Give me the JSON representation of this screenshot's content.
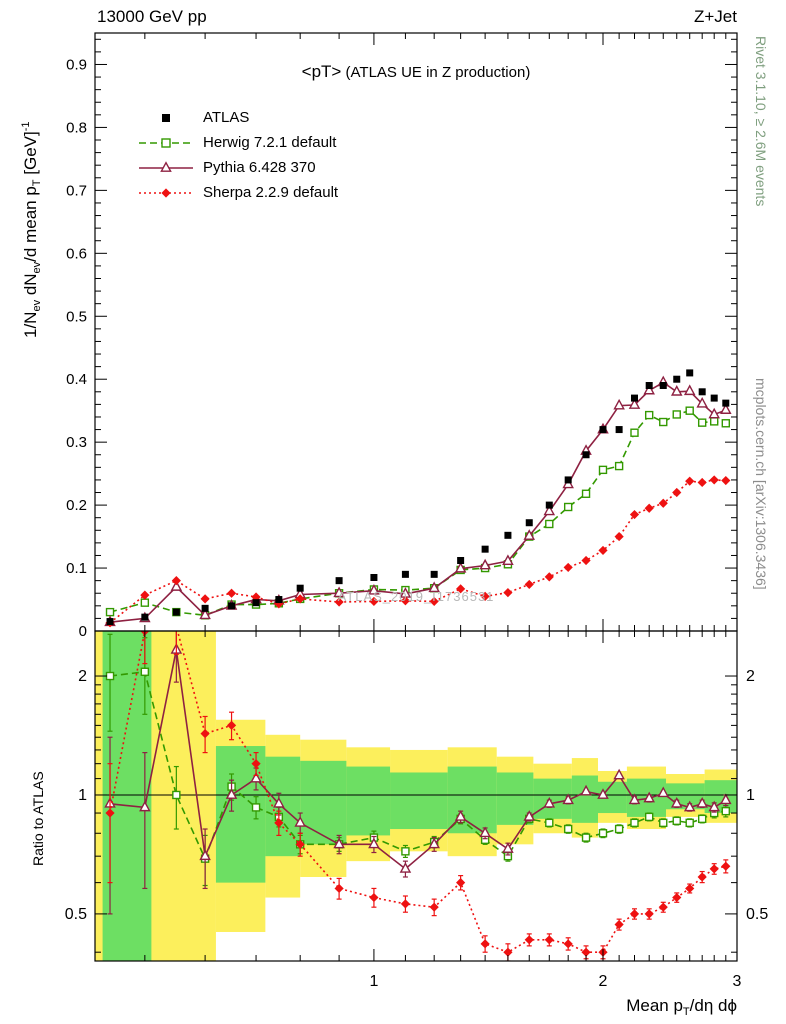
{
  "header": {
    "left": "13000 GeV pp",
    "right": "Z+Jet"
  },
  "panel_title": {
    "main": "<pT>",
    "rest": " (ATLAS UE in Z production)"
  },
  "watermark": "ATLAS_2019_I1736531",
  "side_notes": {
    "right_top": "Rivet 3.1.10, ≥ 2.6M events",
    "right_bottom": "mcplots.cern.ch [arXiv:1306.3436]"
  },
  "axes": {
    "ylabel_top_parts": [
      {
        "t": "1/N"
      },
      {
        "t": "ev",
        "s": "sub"
      },
      {
        "t": " dN"
      },
      {
        "t": "ev",
        "s": "sub"
      },
      {
        "t": "/d mean p"
      },
      {
        "t": "T",
        "s": "sub"
      },
      {
        "t": " [GeV]"
      },
      {
        "t": "-1",
        "s": "sup"
      }
    ],
    "ylabel_ratio": "Ratio to ATLAS",
    "xlabel_parts": [
      {
        "t": "Mean p"
      },
      {
        "t": "T",
        "s": "sub"
      },
      {
        "t": "/dη dϕ"
      }
    ]
  },
  "legend": {
    "items": [
      {
        "label": "ATLAS",
        "color": "#000000",
        "marker": "sq",
        "line": "none"
      },
      {
        "label": "Herwig 7.2.1 default",
        "color": "#339900",
        "marker": "sqo",
        "line": "dashed"
      },
      {
        "label": "Pythia 6.428 370",
        "color": "#8e2142",
        "marker": "tri",
        "line": "solid"
      },
      {
        "label": "Sherpa 2.2.9 default",
        "color": "#ee1111",
        "marker": "dia",
        "line": "dotted"
      }
    ]
  },
  "chart_data": {
    "type": "line",
    "xlabel": "Mean pT/deta dphi",
    "xlim": [
      0.43,
      3.0
    ],
    "xlog": true,
    "xticks": [
      {
        "v": 1,
        "label": "1"
      },
      {
        "v": 2,
        "label": "2"
      },
      {
        "v": 3,
        "label": "3"
      }
    ],
    "x": [
      0.45,
      0.5,
      0.55,
      0.6,
      0.65,
      0.7,
      0.75,
      0.8,
      0.9,
      1.0,
      1.1,
      1.2,
      1.3,
      1.4,
      1.5,
      1.6,
      1.7,
      1.8,
      1.9,
      2.0,
      2.1,
      2.2,
      2.3,
      2.4,
      2.5,
      2.6,
      2.7,
      2.8,
      2.9
    ],
    "top_panel": {
      "title": "<pT> (ATLAS UE in Z production)",
      "ylabel": "1/N_ev dN_ev/d mean p_T [GeV]^-1",
      "ylim": [
        0,
        0.95
      ],
      "yticks": [
        {
          "v": 0,
          "label": "0"
        },
        {
          "v": 0.1,
          "label": "0.1"
        },
        {
          "v": 0.2,
          "label": "0.2"
        },
        {
          "v": 0.3,
          "label": "0.3"
        },
        {
          "v": 0.4,
          "label": "0.4"
        },
        {
          "v": 0.5,
          "label": "0.5"
        },
        {
          "v": 0.6,
          "label": "0.6"
        },
        {
          "v": 0.7,
          "label": "0.7"
        },
        {
          "v": 0.8,
          "label": "0.8"
        },
        {
          "v": 0.9,
          "label": "0.9"
        }
      ],
      "series": [
        {
          "name": "ATLAS",
          "color": "#000000",
          "marker": "sq",
          "line": "none",
          "yerr_const": 0.004,
          "values": [
            0.015,
            0.022,
            0.03,
            0.036,
            0.04,
            0.045,
            0.05,
            0.068,
            0.08,
            0.085,
            0.09,
            0.09,
            0.112,
            0.13,
            0.152,
            0.172,
            0.2,
            0.24,
            0.28,
            0.32,
            0.32,
            0.37,
            0.39,
            0.39,
            0.4,
            0.41,
            0.38,
            0.37,
            0.362
          ]
        },
        {
          "name": "Herwig 7.2.1 default",
          "color": "#339900",
          "marker": "sqo",
          "line": "dashed",
          "yerr_const": 0.004,
          "values": [
            0.03,
            0.045,
            0.03,
            0.025,
            0.042,
            0.042,
            0.044,
            0.051,
            0.06,
            0.066,
            0.065,
            0.068,
            0.097,
            0.1,
            0.106,
            0.15,
            0.17,
            0.197,
            0.218,
            0.256,
            0.262,
            0.315,
            0.343,
            0.332,
            0.344,
            0.35,
            0.331,
            0.333,
            0.33
          ]
        },
        {
          "name": "Pythia 6.428 370",
          "color": "#8e2142",
          "marker": "tri",
          "line": "solid",
          "yerr_const": 0.004,
          "values": [
            0.014,
            0.02,
            0.07,
            0.025,
            0.04,
            0.05,
            0.048,
            0.058,
            0.06,
            0.064,
            0.059,
            0.068,
            0.099,
            0.104,
            0.111,
            0.151,
            0.19,
            0.233,
            0.286,
            0.32,
            0.358,
            0.359,
            0.382,
            0.395,
            0.38,
            0.381,
            0.361,
            0.344,
            0.351
          ]
        },
        {
          "name": "Sherpa 2.2.9 default",
          "color": "#ee1111",
          "marker": "dia",
          "line": "dotted",
          "yerr_const": 0.004,
          "values": [
            0.013,
            0.057,
            0.08,
            0.051,
            0.06,
            0.054,
            0.043,
            0.051,
            0.046,
            0.047,
            0.048,
            0.047,
            0.067,
            0.055,
            0.061,
            0.074,
            0.086,
            0.101,
            0.112,
            0.128,
            0.15,
            0.185,
            0.195,
            0.203,
            0.22,
            0.238,
            0.236,
            0.24,
            0.239
          ]
        }
      ]
    },
    "ratio_panel": {
      "ylabel": "Ratio to ATLAS",
      "ylim": [
        0.38,
        2.6
      ],
      "ylog": true,
      "unity_line": 1,
      "yticks": [
        {
          "v": 0.5,
          "label": "0.5"
        },
        {
          "v": 1,
          "label": "1"
        },
        {
          "v": 2,
          "label": "2"
        }
      ],
      "bands": {
        "yellow_color": "#fcef5c",
        "green_color": "#6ddf63",
        "yellow": [
          [
            0.43,
            0.62,
            0.38,
            2.6
          ],
          [
            0.62,
            0.72,
            0.45,
            1.55
          ],
          [
            0.72,
            0.8,
            0.55,
            1.42
          ],
          [
            0.8,
            0.92,
            0.62,
            1.38
          ],
          [
            0.92,
            1.05,
            0.68,
            1.32
          ],
          [
            1.05,
            1.25,
            0.72,
            1.3
          ],
          [
            1.25,
            1.45,
            0.7,
            1.32
          ],
          [
            1.45,
            1.62,
            0.75,
            1.25
          ],
          [
            1.62,
            1.82,
            0.8,
            1.2
          ],
          [
            1.82,
            1.97,
            0.78,
            1.24
          ],
          [
            1.97,
            2.15,
            0.85,
            1.15
          ],
          [
            2.15,
            2.42,
            0.82,
            1.18
          ],
          [
            2.42,
            2.72,
            0.88,
            1.13
          ],
          [
            2.72,
            3.0,
            0.85,
            1.16
          ]
        ],
        "green": [
          [
            0.44,
            0.51,
            0.38,
            2.6
          ],
          [
            0.62,
            0.72,
            0.6,
            1.33
          ],
          [
            0.72,
            0.8,
            0.7,
            1.25
          ],
          [
            0.8,
            0.92,
            0.75,
            1.22
          ],
          [
            0.92,
            1.05,
            0.79,
            1.18
          ],
          [
            1.05,
            1.25,
            0.82,
            1.14
          ],
          [
            1.25,
            1.45,
            0.8,
            1.18
          ],
          [
            1.45,
            1.62,
            0.84,
            1.14
          ],
          [
            1.62,
            1.82,
            0.87,
            1.1
          ],
          [
            1.82,
            1.97,
            0.85,
            1.12
          ],
          [
            1.97,
            2.15,
            0.9,
            1.08
          ],
          [
            2.15,
            2.42,
            0.88,
            1.1
          ],
          [
            2.42,
            2.72,
            0.92,
            1.07
          ],
          [
            2.72,
            3.0,
            0.9,
            1.09
          ]
        ]
      },
      "series": [
        {
          "name": "Herwig 7.2.1 default",
          "color": "#339900",
          "marker": "sqo",
          "line": "dashed",
          "values": [
            2.0,
            2.05,
            1.0,
            0.69,
            1.05,
            0.93,
            0.88,
            0.75,
            0.75,
            0.78,
            0.72,
            0.76,
            0.87,
            0.77,
            0.7,
            0.87,
            0.85,
            0.82,
            0.78,
            0.8,
            0.82,
            0.85,
            0.88,
            0.85,
            0.86,
            0.85,
            0.87,
            0.9,
            0.91
          ],
          "yerr": [
            0.55,
            0.45,
            0.18,
            0.1,
            0.08,
            0.06,
            0.05,
            0.04,
            0.03,
            0.03,
            0.025,
            0.025,
            0.025,
            0.02,
            0.02,
            0.02,
            0.02,
            0.02,
            0.02,
            0.02,
            0.02,
            0.02,
            0.02,
            0.02,
            0.02,
            0.02,
            0.02,
            0.025,
            0.03
          ]
        },
        {
          "name": "Pythia 6.428 370",
          "color": "#8e2142",
          "marker": "tri",
          "line": "solid",
          "values": [
            0.95,
            0.93,
            2.33,
            0.7,
            1.0,
            1.1,
            0.95,
            0.85,
            0.75,
            0.75,
            0.65,
            0.75,
            0.88,
            0.8,
            0.73,
            0.88,
            0.95,
            0.97,
            1.02,
            1.0,
            1.12,
            0.97,
            0.98,
            1.01,
            0.95,
            0.93,
            0.95,
            0.93,
            0.97
          ],
          "yerr": [
            0.45,
            0.35,
            0.4,
            0.12,
            0.09,
            0.07,
            0.06,
            0.05,
            0.04,
            0.035,
            0.03,
            0.03,
            0.03,
            0.025,
            0.025,
            0.02,
            0.02,
            0.02,
            0.02,
            0.02,
            0.02,
            0.02,
            0.02,
            0.02,
            0.02,
            0.02,
            0.02,
            0.025,
            0.03
          ]
        },
        {
          "name": "Sherpa 2.2.9 default",
          "color": "#ee1111",
          "marker": "dia",
          "line": "dotted",
          "values": [
            0.9,
            2.6,
            2.67,
            1.43,
            1.5,
            1.2,
            0.85,
            0.75,
            0.58,
            0.55,
            0.53,
            0.52,
            0.6,
            0.42,
            0.4,
            0.43,
            0.43,
            0.42,
            0.4,
            0.4,
            0.47,
            0.5,
            0.5,
            0.52,
            0.55,
            0.58,
            0.62,
            0.65,
            0.66
          ],
          "yerr": [
            0.3,
            0.45,
            0.4,
            0.15,
            0.12,
            0.08,
            0.06,
            0.05,
            0.035,
            0.03,
            0.025,
            0.025,
            0.025,
            0.02,
            0.02,
            0.015,
            0.015,
            0.015,
            0.015,
            0.015,
            0.015,
            0.015,
            0.015,
            0.015,
            0.015,
            0.015,
            0.02,
            0.02,
            0.025
          ]
        }
      ]
    }
  }
}
